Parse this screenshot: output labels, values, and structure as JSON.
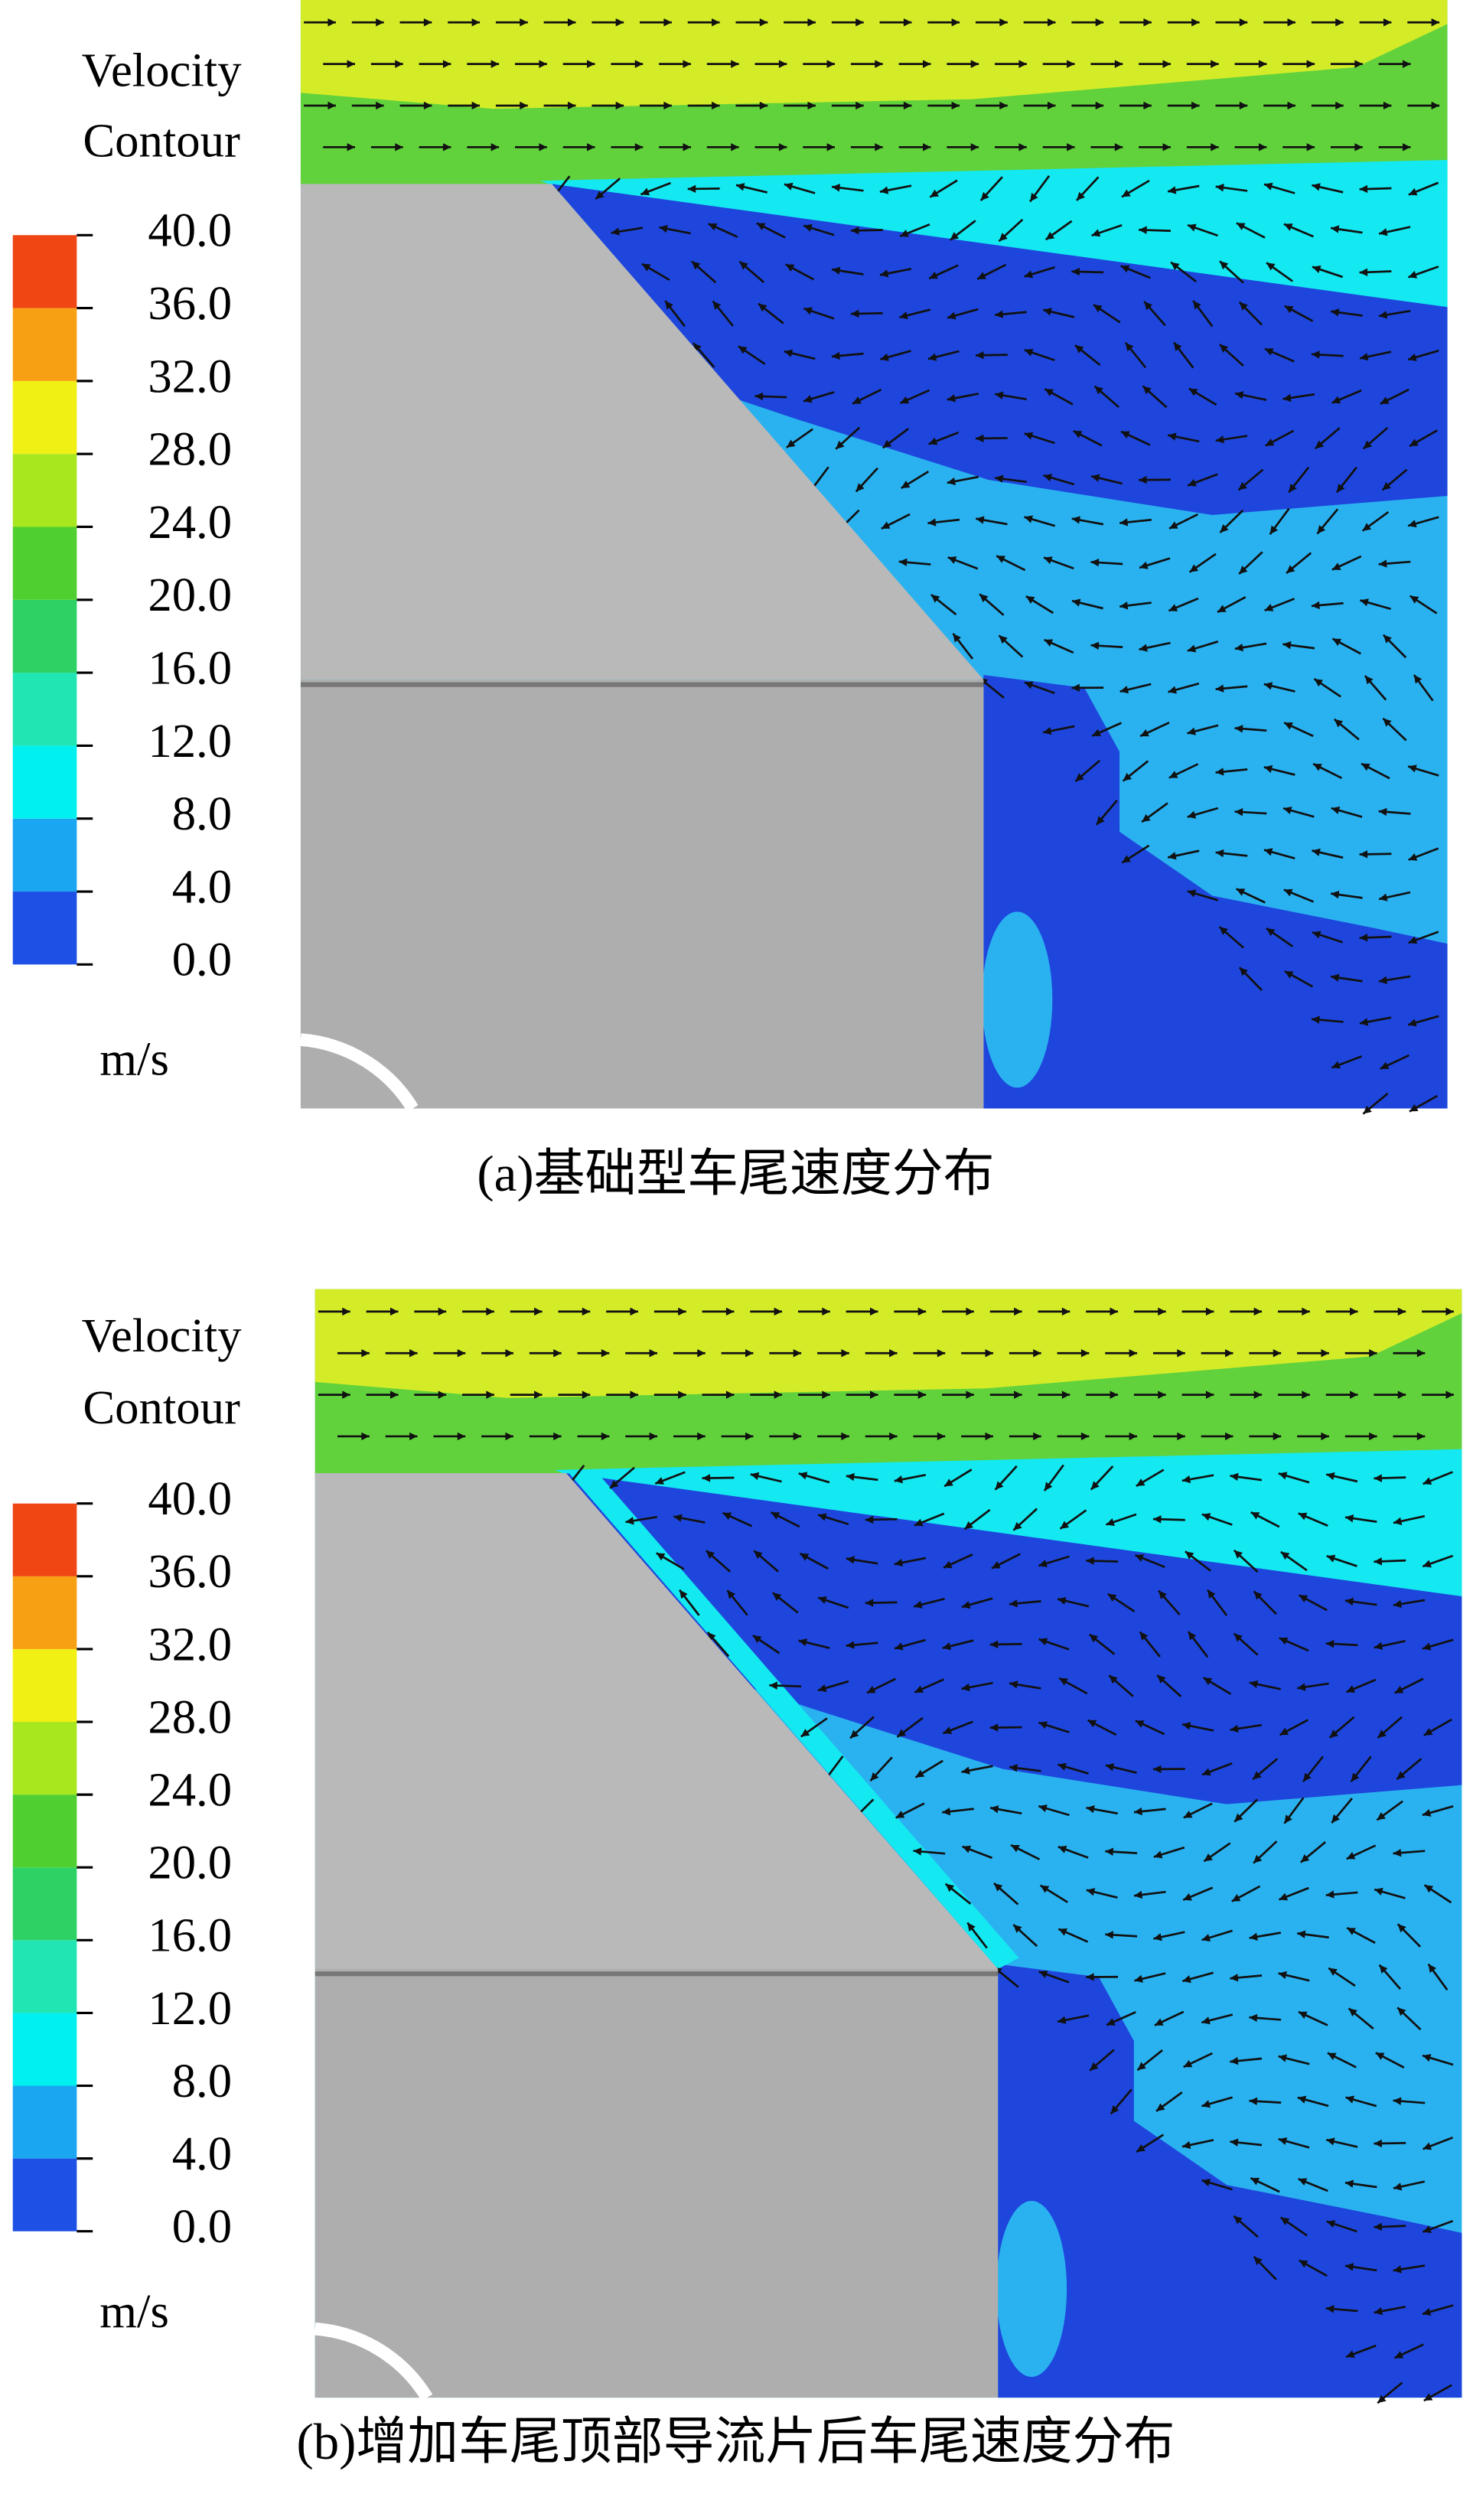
{
  "panels": [
    {
      "legend_title": [
        "Velocity",
        "Contour"
      ],
      "legend_ticks": [
        {
          "value": 0,
          "label": "0.0"
        },
        {
          "value": 4,
          "label": "4.0"
        },
        {
          "value": 8,
          "label": "8.0"
        },
        {
          "value": 12,
          "label": "12.0"
        },
        {
          "value": 16,
          "label": "16.0"
        },
        {
          "value": 20,
          "label": "20.0"
        },
        {
          "value": 24,
          "label": "24.0"
        },
        {
          "value": 28,
          "label": "28.0"
        },
        {
          "value": 32,
          "label": "32.0"
        },
        {
          "value": 36,
          "label": "36.0"
        },
        {
          "value": 40,
          "label": "40.0"
        }
      ],
      "legend_colors": [
        "#1e50e6",
        "#1aa6f0",
        "#00f0f0",
        "#20e6b4",
        "#2ed264",
        "#50d030",
        "#a8e61e",
        "#f0f014",
        "#f8a014",
        "#f04614"
      ],
      "unit": "m/s",
      "caption": "(a)基础型车尾速度分布"
    },
    {
      "legend_title": [
        "Velocity",
        "Contour"
      ],
      "legend_ticks": [
        {
          "value": 0,
          "label": "0.0"
        },
        {
          "value": 4,
          "label": "4.0"
        },
        {
          "value": 8,
          "label": "8.0"
        },
        {
          "value": 12,
          "label": "12.0"
        },
        {
          "value": 16,
          "label": "16.0"
        },
        {
          "value": 20,
          "label": "20.0"
        },
        {
          "value": 24,
          "label": "24.0"
        },
        {
          "value": 28,
          "label": "28.0"
        },
        {
          "value": 32,
          "label": "32.0"
        },
        {
          "value": 36,
          "label": "36.0"
        },
        {
          "value": 40,
          "label": "40.0"
        }
      ],
      "legend_colors": [
        "#1e50e6",
        "#1aa6f0",
        "#00f0f0",
        "#20e6b4",
        "#2ed264",
        "#50d030",
        "#a8e61e",
        "#f0f014",
        "#f8a014",
        "#f04614"
      ],
      "unit": "m/s",
      "caption": "(b)增加车尾顶部导流片后车尾速度分布"
    }
  ]
}
